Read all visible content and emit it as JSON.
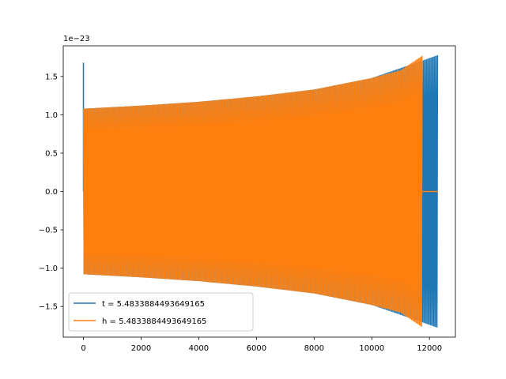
{
  "chart_data": {
    "type": "line",
    "title": "",
    "xlabel": "",
    "ylabel": "",
    "offset_text": "1e−23",
    "xlim": [
      -700,
      12900
    ],
    "ylim": [
      -1.9,
      1.9
    ],
    "xticks": [
      0,
      2000,
      4000,
      6000,
      8000,
      10000,
      12000
    ],
    "xtick_labels": [
      "0",
      "2000",
      "4000",
      "6000",
      "8000",
      "10000",
      "12000"
    ],
    "yticks": [
      -1.5,
      -1.0,
      -0.5,
      0.0,
      0.5,
      1.0,
      1.5
    ],
    "ytick_labels": [
      "−1.5",
      "−1.0",
      "−0.5",
      "0.0",
      "0.5",
      "1.0",
      "1.5"
    ],
    "grid": false,
    "legend_position": "lower-left",
    "series": [
      {
        "name": "t = 5.4833884493649165",
        "color": "#1f77b4",
        "style": "oscillating-envelope",
        "spike": {
          "x": 0,
          "y": 1.68
        },
        "envelope": {
          "x": [
            0,
            2000,
            4000,
            6000,
            8000,
            10000,
            11700,
            12300
          ],
          "upper": [
            1.08,
            1.12,
            1.17,
            1.24,
            1.33,
            1.48,
            1.7,
            1.78
          ],
          "lower": [
            -1.08,
            -1.12,
            -1.17,
            -1.24,
            -1.33,
            -1.48,
            -1.7,
            -1.78
          ]
        }
      },
      {
        "name": "h = 5.4833884493649165",
        "color": "#ff7f0e",
        "style": "oscillating-envelope",
        "envelope": {
          "x": [
            0,
            2000,
            4000,
            6000,
            8000,
            10000,
            11000,
            11750
          ],
          "upper": [
            1.08,
            1.12,
            1.17,
            1.24,
            1.33,
            1.48,
            1.58,
            1.77
          ],
          "lower": [
            -1.08,
            -1.12,
            -1.17,
            -1.24,
            -1.33,
            -1.48,
            -1.58,
            -1.77
          ]
        },
        "tail": {
          "x": [
            11750,
            12300
          ],
          "y": [
            0.0,
            0.0
          ]
        }
      }
    ]
  }
}
